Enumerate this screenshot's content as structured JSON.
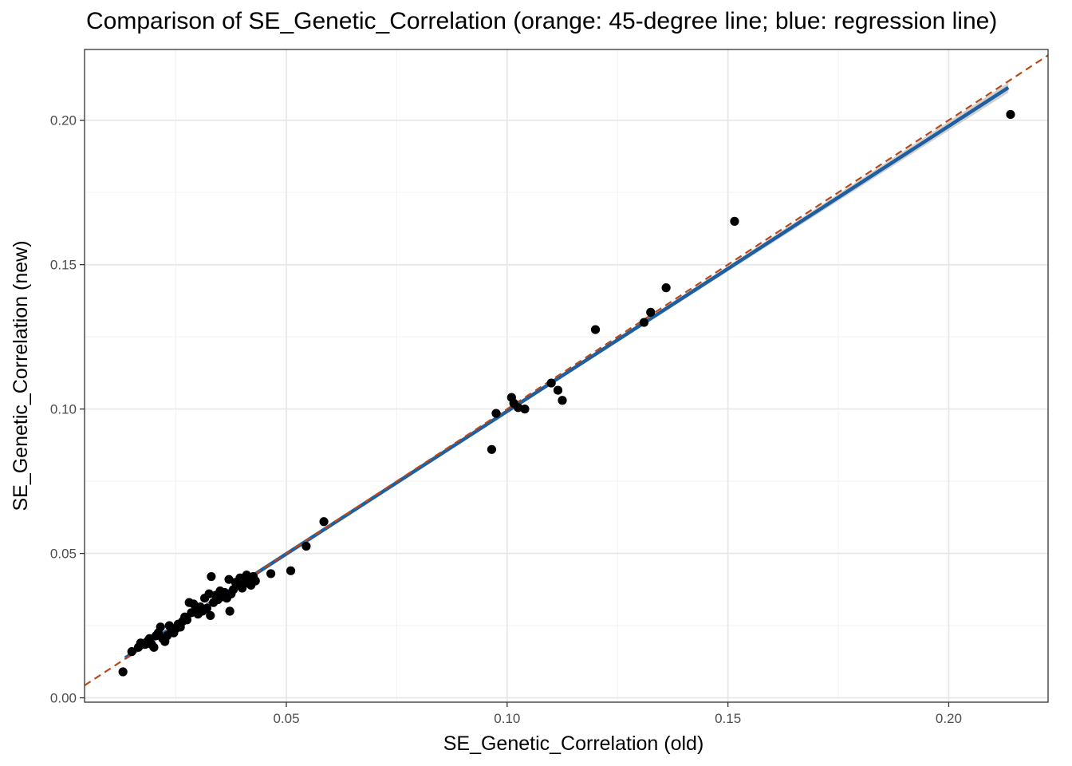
{
  "chart_data": {
    "type": "scatter",
    "title": "Comparison of SE_Genetic_Correlation (orange: 45-degree line; blue: regression line)",
    "xlabel": "SE_Genetic_Correlation (old)",
    "ylabel": "SE_Genetic_Correlation (new)",
    "xlim": [
      0.0043,
      0.2225
    ],
    "ylim": [
      -0.0015,
      0.2245
    ],
    "x_ticks": [
      0.05,
      0.1,
      0.15,
      0.2
    ],
    "x_tick_labels": [
      "0.05",
      "0.10",
      "0.15",
      "0.20"
    ],
    "y_ticks": [
      0.0,
      0.05,
      0.1,
      0.15,
      0.2
    ],
    "y_tick_labels": [
      "0.00",
      "0.05",
      "0.10",
      "0.15",
      "0.20"
    ],
    "grid": true,
    "colors": {
      "points": "#000000",
      "identity_line": "#B84A1A",
      "regression_line": "#1F5FA0",
      "confidence_band": "#C8C8C8",
      "grid_major": "#E6E6E6",
      "grid_minor": "#F2F2F2",
      "panel_border": "#333333"
    },
    "identity_line": {
      "slope": 1,
      "intercept": 0
    },
    "regression_line": {
      "x_range": [
        0.0135,
        0.2135
      ],
      "y_range": [
        0.0138,
        0.2113
      ]
    },
    "points": [
      {
        "x": 0.013,
        "y": 0.009
      },
      {
        "x": 0.015,
        "y": 0.016
      },
      {
        "x": 0.0165,
        "y": 0.0175
      },
      {
        "x": 0.017,
        "y": 0.019
      },
      {
        "x": 0.018,
        "y": 0.0185
      },
      {
        "x": 0.0185,
        "y": 0.0195
      },
      {
        "x": 0.019,
        "y": 0.0205
      },
      {
        "x": 0.0195,
        "y": 0.0185
      },
      {
        "x": 0.02,
        "y": 0.0175
      },
      {
        "x": 0.0205,
        "y": 0.0215
      },
      {
        "x": 0.021,
        "y": 0.0225
      },
      {
        "x": 0.0215,
        "y": 0.0245
      },
      {
        "x": 0.022,
        "y": 0.0205
      },
      {
        "x": 0.0225,
        "y": 0.0195
      },
      {
        "x": 0.023,
        "y": 0.0215
      },
      {
        "x": 0.0235,
        "y": 0.025
      },
      {
        "x": 0.024,
        "y": 0.023
      },
      {
        "x": 0.0245,
        "y": 0.0225
      },
      {
        "x": 0.025,
        "y": 0.024
      },
      {
        "x": 0.0255,
        "y": 0.0255
      },
      {
        "x": 0.026,
        "y": 0.0245
      },
      {
        "x": 0.0265,
        "y": 0.0265
      },
      {
        "x": 0.027,
        "y": 0.028
      },
      {
        "x": 0.0275,
        "y": 0.027
      },
      {
        "x": 0.028,
        "y": 0.033
      },
      {
        "x": 0.0285,
        "y": 0.0295
      },
      {
        "x": 0.029,
        "y": 0.0325
      },
      {
        "x": 0.0295,
        "y": 0.0305
      },
      {
        "x": 0.03,
        "y": 0.029
      },
      {
        "x": 0.0305,
        "y": 0.0315
      },
      {
        "x": 0.031,
        "y": 0.03
      },
      {
        "x": 0.0315,
        "y": 0.0345
      },
      {
        "x": 0.032,
        "y": 0.031
      },
      {
        "x": 0.0325,
        "y": 0.036
      },
      {
        "x": 0.0328,
        "y": 0.0285
      },
      {
        "x": 0.033,
        "y": 0.042
      },
      {
        "x": 0.0335,
        "y": 0.033
      },
      {
        "x": 0.034,
        "y": 0.0355
      },
      {
        "x": 0.0345,
        "y": 0.034
      },
      {
        "x": 0.035,
        "y": 0.037
      },
      {
        "x": 0.0355,
        "y": 0.035
      },
      {
        "x": 0.036,
        "y": 0.0365
      },
      {
        "x": 0.0365,
        "y": 0.0345
      },
      {
        "x": 0.037,
        "y": 0.041
      },
      {
        "x": 0.0372,
        "y": 0.03
      },
      {
        "x": 0.0375,
        "y": 0.036
      },
      {
        "x": 0.038,
        "y": 0.0375
      },
      {
        "x": 0.0385,
        "y": 0.04
      },
      {
        "x": 0.039,
        "y": 0.039
      },
      {
        "x": 0.0395,
        "y": 0.0415
      },
      {
        "x": 0.04,
        "y": 0.038
      },
      {
        "x": 0.0405,
        "y": 0.0395
      },
      {
        "x": 0.041,
        "y": 0.0425
      },
      {
        "x": 0.0415,
        "y": 0.0405
      },
      {
        "x": 0.042,
        "y": 0.039
      },
      {
        "x": 0.0425,
        "y": 0.042
      },
      {
        "x": 0.043,
        "y": 0.0405
      },
      {
        "x": 0.0465,
        "y": 0.043
      },
      {
        "x": 0.051,
        "y": 0.044
      },
      {
        "x": 0.0545,
        "y": 0.0525
      },
      {
        "x": 0.0585,
        "y": 0.061
      },
      {
        "x": 0.0965,
        "y": 0.086
      },
      {
        "x": 0.0975,
        "y": 0.0985
      },
      {
        "x": 0.101,
        "y": 0.104
      },
      {
        "x": 0.1015,
        "y": 0.102
      },
      {
        "x": 0.1025,
        "y": 0.1005
      },
      {
        "x": 0.104,
        "y": 0.1
      },
      {
        "x": 0.11,
        "y": 0.109
      },
      {
        "x": 0.1115,
        "y": 0.1065
      },
      {
        "x": 0.1125,
        "y": 0.103
      },
      {
        "x": 0.12,
        "y": 0.1275
      },
      {
        "x": 0.131,
        "y": 0.13
      },
      {
        "x": 0.1325,
        "y": 0.1335
      },
      {
        "x": 0.136,
        "y": 0.142
      },
      {
        "x": 0.1515,
        "y": 0.165
      },
      {
        "x": 0.214,
        "y": 0.202
      }
    ]
  }
}
